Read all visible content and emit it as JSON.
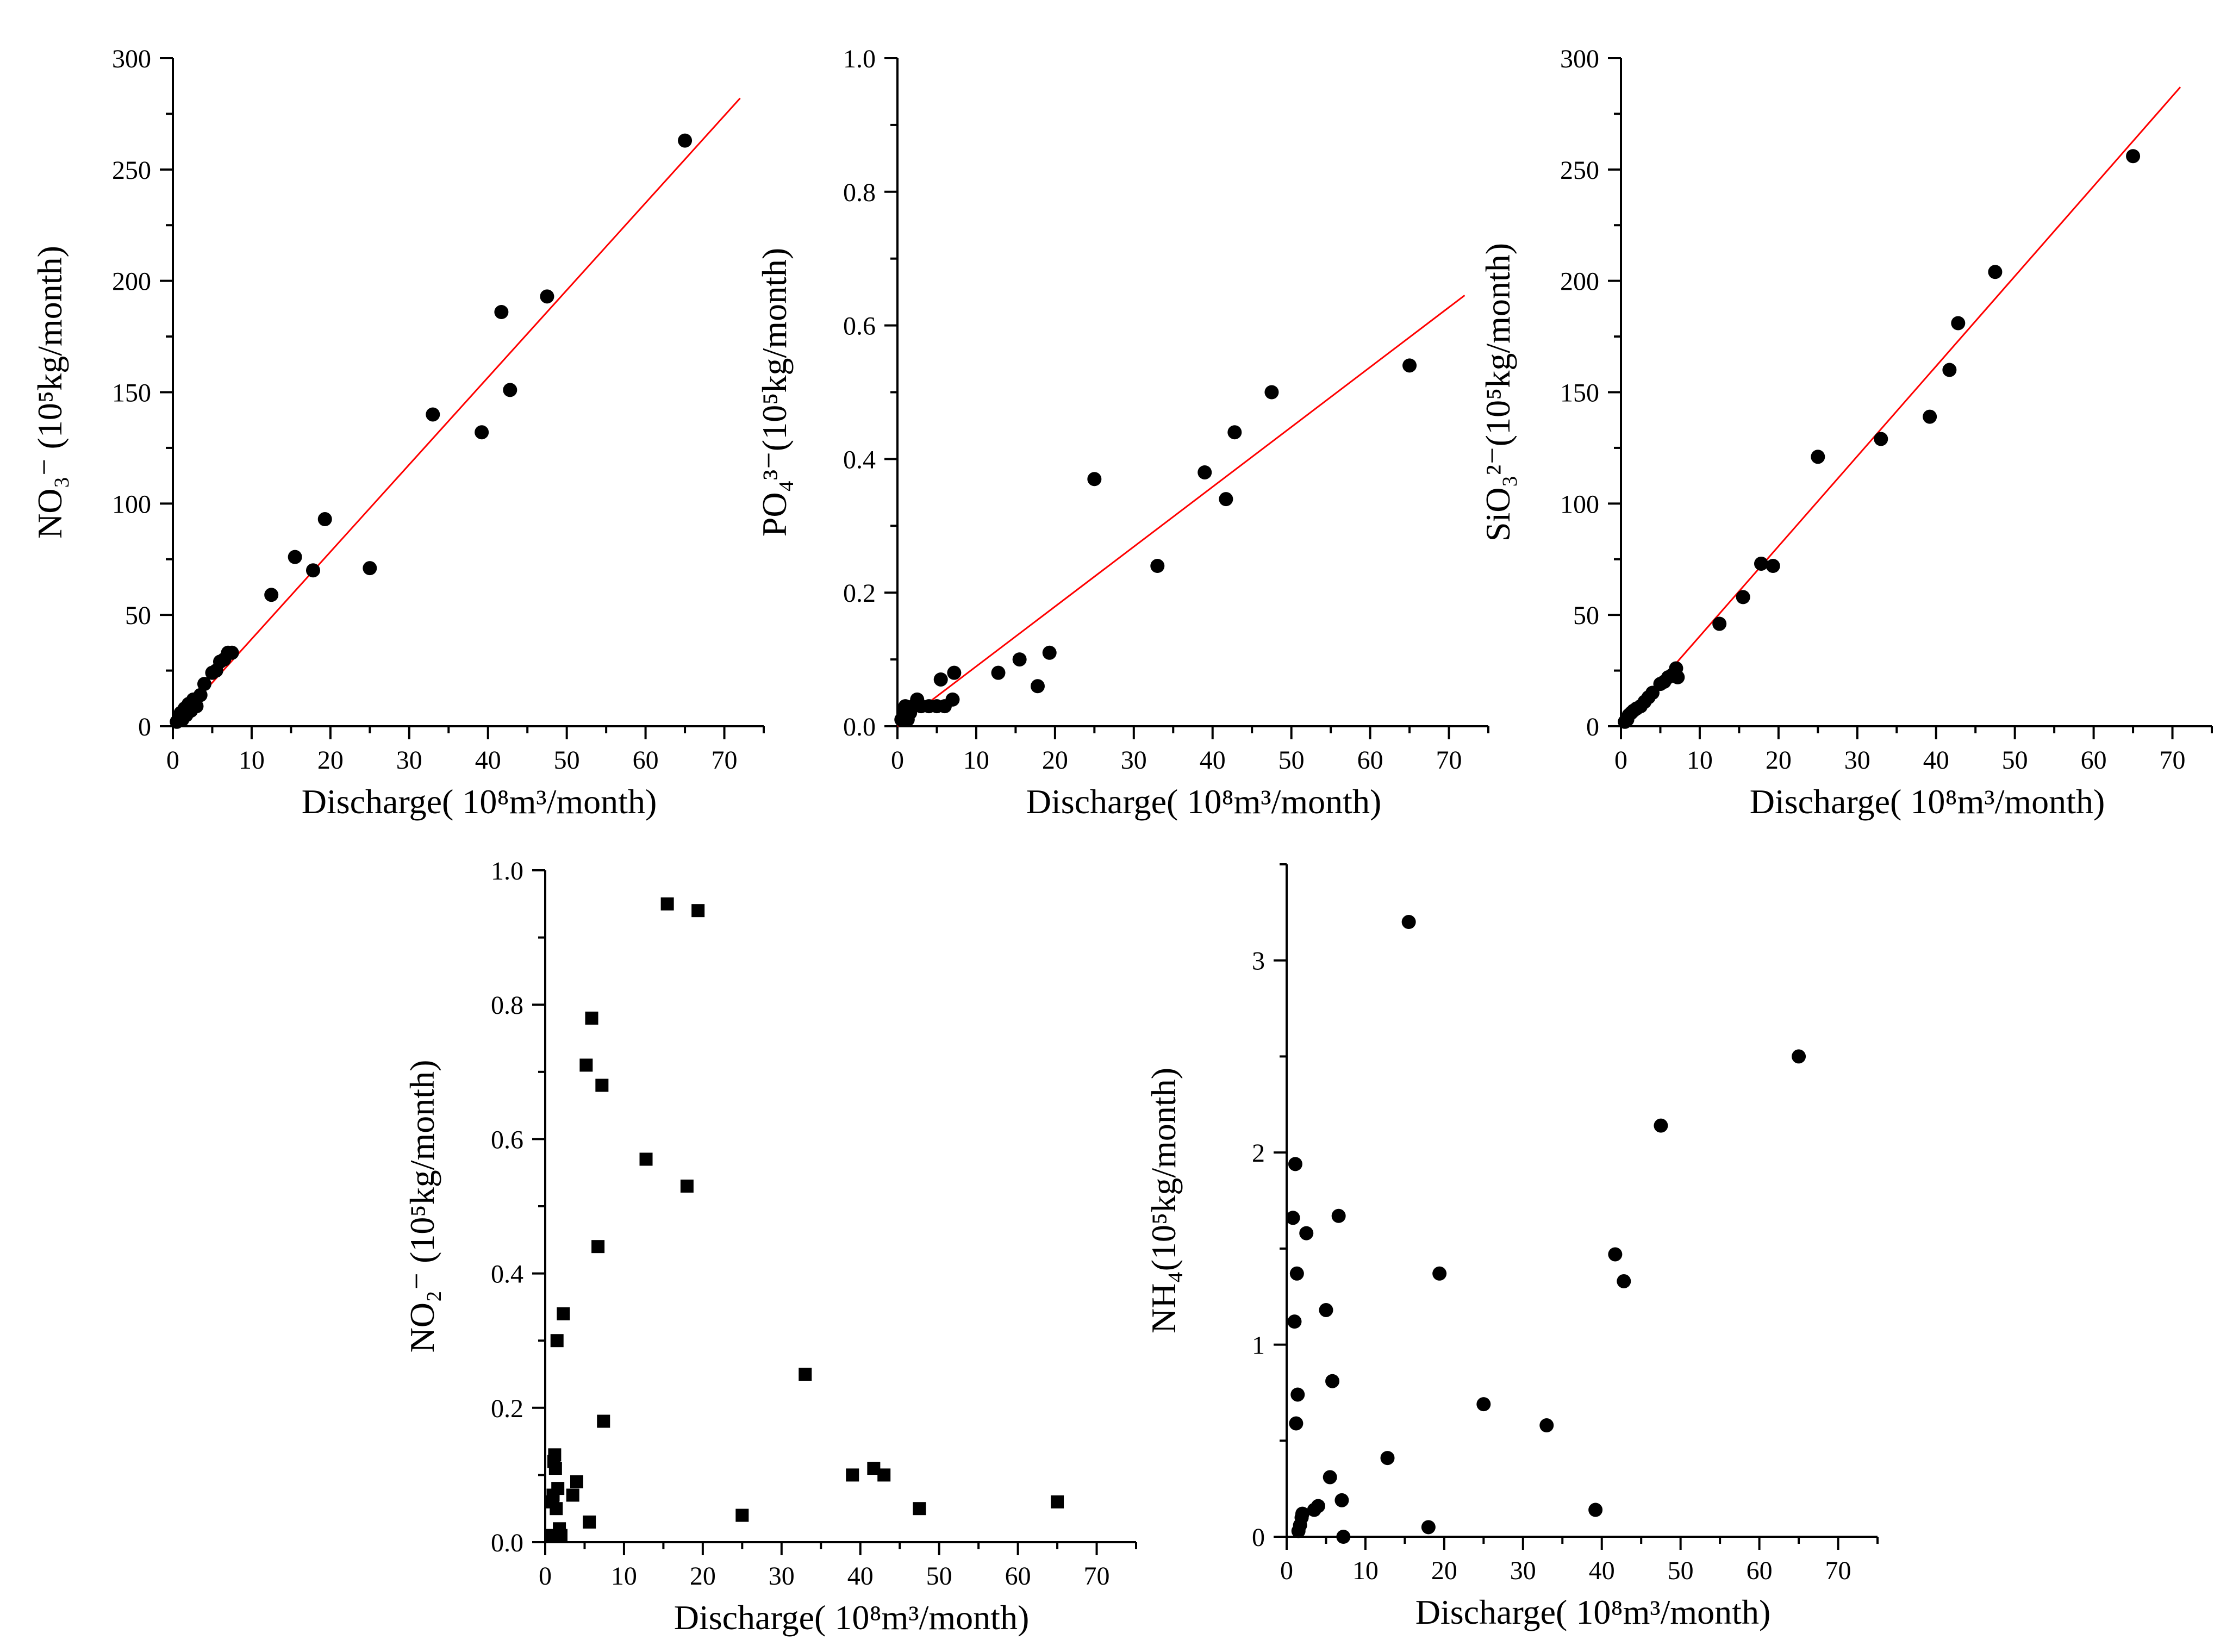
{
  "chart_data": [
    {
      "type": "scatter",
      "title": "",
      "marker": "circle",
      "xlabel": "Discharge(   10⁸m³/month)",
      "ylabel": "NO₃⁻ (10⁵kg/month)",
      "xlim": [
        0,
        75
      ],
      "ylim": [
        0,
        300
      ],
      "xticks": [
        0,
        10,
        20,
        30,
        40,
        50,
        60,
        70
      ],
      "yticks": [
        0,
        50,
        100,
        150,
        200,
        250,
        300
      ],
      "ytick_labels": [
        "0",
        "50",
        "100",
        "150",
        "200",
        "250",
        "300"
      ],
      "fit_line": {
        "x": [
          0,
          72
        ],
        "y": [
          0,
          282
        ]
      },
      "points": [
        [
          0.5,
          2
        ],
        [
          0.8,
          4
        ],
        [
          1.0,
          6
        ],
        [
          1.2,
          3
        ],
        [
          1.5,
          8
        ],
        [
          1.7,
          5
        ],
        [
          2.0,
          10
        ],
        [
          2.3,
          7
        ],
        [
          2.6,
          12
        ],
        [
          3.0,
          9
        ],
        [
          3.5,
          14
        ],
        [
          4.0,
          19
        ],
        [
          5.0,
          24
        ],
        [
          5.5,
          25
        ],
        [
          6.0,
          29
        ],
        [
          6.5,
          30
        ],
        [
          7.0,
          33
        ],
        [
          7.5,
          33
        ],
        [
          12.5,
          59
        ],
        [
          15.5,
          76
        ],
        [
          17.8,
          70
        ],
        [
          19.3,
          93
        ],
        [
          25.0,
          71
        ],
        [
          33.0,
          140
        ],
        [
          39.2,
          132
        ],
        [
          41.7,
          186
        ],
        [
          42.8,
          151
        ],
        [
          47.5,
          193
        ],
        [
          65.0,
          263
        ]
      ]
    },
    {
      "type": "scatter",
      "title": "",
      "marker": "circle",
      "xlabel": "Discharge(   10⁸m³/month)",
      "ylabel": "PO₄³⁻(10⁵kg/month)",
      "xlim": [
        0,
        75
      ],
      "ylim": [
        0,
        1.0
      ],
      "xticks": [
        0,
        10,
        20,
        30,
        40,
        50,
        60,
        70
      ],
      "yticks": [
        0,
        0.2,
        0.4,
        0.6,
        0.8,
        1.0
      ],
      "ytick_labels": [
        "0.0",
        "0.2",
        "0.4",
        "0.6",
        "0.8",
        "1.0"
      ],
      "fit_line": {
        "x": [
          0,
          72
        ],
        "y": [
          0,
          0.645
        ]
      },
      "points": [
        [
          0.5,
          0.01
        ],
        [
          0.8,
          0.02
        ],
        [
          1.0,
          0.03
        ],
        [
          1.3,
          0.01
        ],
        [
          1.6,
          0.02
        ],
        [
          2.0,
          0.03
        ],
        [
          2.5,
          0.04
        ],
        [
          3.0,
          0.03
        ],
        [
          4.0,
          0.03
        ],
        [
          5.0,
          0.03
        ],
        [
          5.5,
          0.07
        ],
        [
          6.0,
          0.03
        ],
        [
          7.0,
          0.04
        ],
        [
          7.2,
          0.08
        ],
        [
          12.8,
          0.08
        ],
        [
          15.5,
          0.1
        ],
        [
          17.8,
          0.06
        ],
        [
          19.3,
          0.11
        ],
        [
          25.0,
          0.37
        ],
        [
          33.0,
          0.24
        ],
        [
          39.0,
          0.38
        ],
        [
          41.7,
          0.34
        ],
        [
          42.8,
          0.44
        ],
        [
          47.5,
          0.5
        ],
        [
          65.0,
          0.54
        ]
      ]
    },
    {
      "type": "scatter",
      "title": "",
      "marker": "circle",
      "xlabel": "Discharge(   10⁸m³/month)",
      "ylabel": "SiO₃²⁻(10⁵kg/month)",
      "xlim": [
        0,
        75
      ],
      "ylim": [
        0,
        300
      ],
      "xticks": [
        0,
        10,
        20,
        30,
        40,
        50,
        60,
        70
      ],
      "yticks": [
        0,
        50,
        100,
        150,
        200,
        250,
        300
      ],
      "ytick_labels": [
        "0",
        "50",
        "100",
        "150",
        "200",
        "250",
        "300"
      ],
      "fit_line": {
        "x": [
          0,
          71
        ],
        "y": [
          0,
          287
        ]
      },
      "points": [
        [
          0.5,
          2
        ],
        [
          0.8,
          3
        ],
        [
          1.0,
          5
        ],
        [
          1.3,
          6
        ],
        [
          1.6,
          7
        ],
        [
          2.0,
          8
        ],
        [
          2.5,
          9
        ],
        [
          3.0,
          11
        ],
        [
          3.5,
          13
        ],
        [
          4.0,
          15
        ],
        [
          5.0,
          19
        ],
        [
          5.5,
          20
        ],
        [
          6.0,
          22
        ],
        [
          6.5,
          23
        ],
        [
          7.0,
          26
        ],
        [
          7.2,
          22
        ],
        [
          12.5,
          46
        ],
        [
          15.5,
          58
        ],
        [
          17.8,
          73
        ],
        [
          19.3,
          72
        ],
        [
          25.0,
          121
        ],
        [
          33.0,
          129
        ],
        [
          39.2,
          139
        ],
        [
          41.7,
          160
        ],
        [
          42.8,
          181
        ],
        [
          47.5,
          204
        ],
        [
          65.0,
          256
        ]
      ]
    },
    {
      "type": "scatter",
      "title": "",
      "marker": "square",
      "xlabel": "Discharge(   10⁸m³/month)",
      "ylabel": "NO₂⁻ (10⁵kg/month)",
      "xlim": [
        0,
        75
      ],
      "ylim": [
        0,
        1.0
      ],
      "xticks": [
        0,
        10,
        20,
        30,
        40,
        50,
        60,
        70
      ],
      "yticks": [
        0,
        0.2,
        0.4,
        0.6,
        0.8,
        1.0
      ],
      "ytick_labels": [
        "0.0",
        "0.2",
        "0.4",
        "0.6",
        "0.8",
        "1.0"
      ],
      "fit_line": null,
      "points": [
        [
          0.8,
          0.01
        ],
        [
          0.9,
          0.06
        ],
        [
          1.0,
          0.07
        ],
        [
          1.1,
          0.12
        ],
        [
          1.2,
          0.13
        ],
        [
          1.3,
          0.11
        ],
        [
          1.4,
          0.05
        ],
        [
          1.5,
          0.3
        ],
        [
          1.6,
          0.08
        ],
        [
          1.8,
          0.02
        ],
        [
          2.0,
          0.01
        ],
        [
          2.3,
          0.34
        ],
        [
          3.5,
          0.07
        ],
        [
          4.0,
          0.09
        ],
        [
          5.2,
          0.71
        ],
        [
          5.6,
          0.03
        ],
        [
          5.9,
          0.78
        ],
        [
          6.7,
          0.44
        ],
        [
          7.2,
          0.68
        ],
        [
          7.4,
          0.18
        ],
        [
          12.8,
          0.57
        ],
        [
          15.5,
          0.95
        ],
        [
          18.0,
          0.53
        ],
        [
          19.4,
          0.94
        ],
        [
          25.0,
          0.04
        ],
        [
          33.0,
          0.25
        ],
        [
          39.0,
          0.1
        ],
        [
          41.7,
          0.11
        ],
        [
          43.0,
          0.1
        ],
        [
          47.5,
          0.05
        ],
        [
          65.0,
          0.06
        ]
      ]
    },
    {
      "type": "scatter",
      "title": "",
      "marker": "circle",
      "xlabel": "Discharge(   10⁸m³/month)",
      "ylabel": "NH₄(10⁵kg/month)",
      "xlim": [
        0,
        75
      ],
      "ylim": [
        0,
        3.5
      ],
      "xticks": [
        0,
        10,
        20,
        30,
        40,
        50,
        60,
        70
      ],
      "yticks": [
        0,
        1,
        2,
        3
      ],
      "ytick_labels": [
        "0",
        "1",
        "2",
        "3"
      ],
      "fit_line": null,
      "points": [
        [
          0.8,
          1.66
        ],
        [
          1.0,
          1.12
        ],
        [
          1.1,
          1.94
        ],
        [
          1.2,
          0.59
        ],
        [
          1.3,
          1.37
        ],
        [
          1.4,
          0.74
        ],
        [
          1.5,
          0.03
        ],
        [
          1.7,
          0.06
        ],
        [
          1.9,
          0.1
        ],
        [
          2.0,
          0.12
        ],
        [
          2.5,
          1.58
        ],
        [
          3.5,
          0.14
        ],
        [
          4.0,
          0.16
        ],
        [
          5.0,
          1.18
        ],
        [
          5.5,
          0.31
        ],
        [
          5.8,
          0.81
        ],
        [
          6.6,
          1.67
        ],
        [
          7.0,
          0.19
        ],
        [
          7.2,
          0.0
        ],
        [
          12.8,
          0.41
        ],
        [
          15.5,
          3.2
        ],
        [
          18.0,
          0.05
        ],
        [
          19.4,
          1.37
        ],
        [
          25.0,
          0.69
        ],
        [
          33.0,
          0.58
        ],
        [
          39.2,
          0.14
        ],
        [
          41.7,
          1.47
        ],
        [
          42.8,
          1.33
        ],
        [
          47.5,
          2.14
        ],
        [
          65.0,
          2.5
        ]
      ]
    }
  ]
}
